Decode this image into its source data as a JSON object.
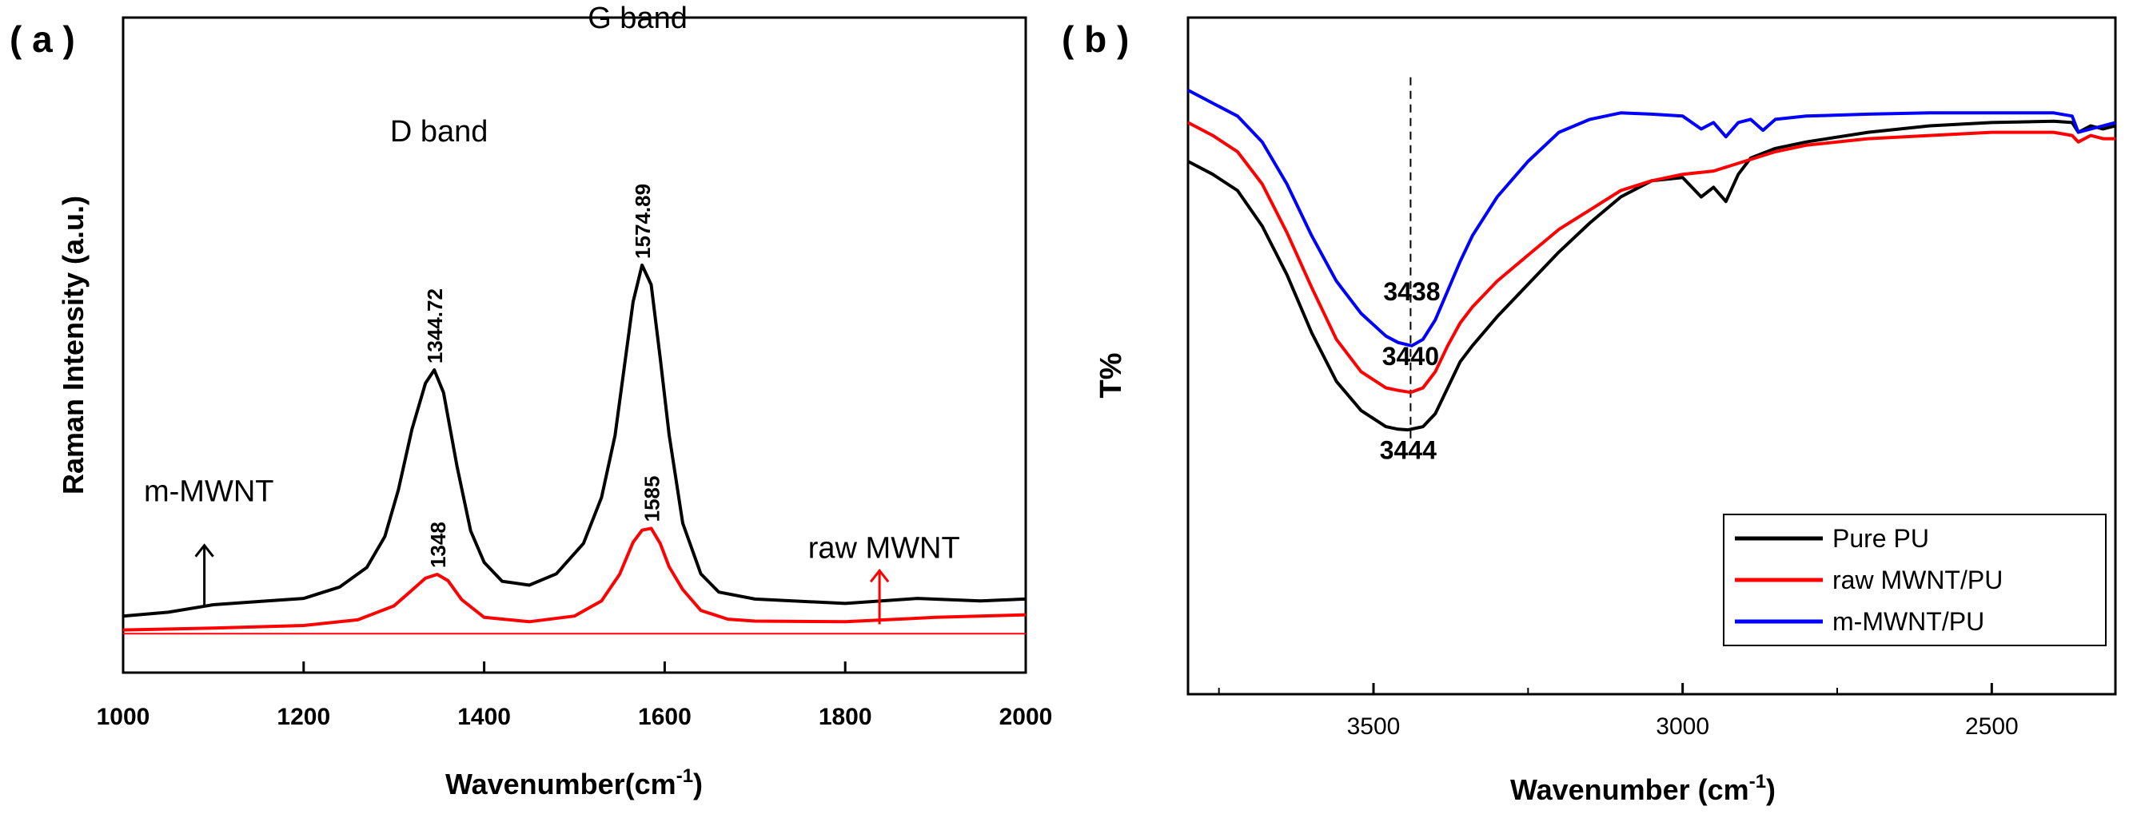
{
  "chart_data": [
    {
      "panel": "( a )",
      "type": "line",
      "title": "",
      "xlabel": "Wavenumber(cm",
      "xlabel_sup": "-1",
      "xlabel_close": ")",
      "ylabel": "Raman Intensity (a.u.)",
      "xlim": [
        1000,
        2000
      ],
      "ylim": [
        0,
        100
      ],
      "x_ticks": [
        1000,
        1200,
        1400,
        1600,
        1800,
        2000
      ],
      "x_tick_labels": [
        "1000",
        "1200",
        "1400",
        "1600",
        "1800",
        "2000"
      ],
      "y_ticks_shown": false,
      "series": [
        {
          "name": "m-MWNT",
          "color": "#000000",
          "x": [
            1000,
            1050,
            1100,
            1150,
            1200,
            1240,
            1270,
            1290,
            1305,
            1320,
            1335,
            1344.72,
            1355,
            1370,
            1385,
            1400,
            1420,
            1450,
            1480,
            1510,
            1530,
            1545,
            1555,
            1565,
            1574.89,
            1585,
            1595,
            1605,
            1620,
            1640,
            1660,
            1700,
            1800,
            1880,
            1950,
            2000
          ],
          "values": [
            5.8,
            6.4,
            7.6,
            8.1,
            8.6,
            10.4,
            13.5,
            18.4,
            25.8,
            35.4,
            42.7,
            44.8,
            41.2,
            29.5,
            19.3,
            14.3,
            11.3,
            10.7,
            12.5,
            17.3,
            24.6,
            34.4,
            45.0,
            55.6,
            61.4,
            58.3,
            46.7,
            34.5,
            20.5,
            12.5,
            9.6,
            8.5,
            7.8,
            8.6,
            8.2,
            8.5
          ]
        },
        {
          "name": "raw MWNT",
          "color": "#ff0000",
          "x": [
            1000,
            1100,
            1200,
            1260,
            1300,
            1320,
            1335,
            1348,
            1360,
            1375,
            1400,
            1450,
            1500,
            1530,
            1550,
            1565,
            1575,
            1585,
            1595,
            1605,
            1620,
            1640,
            1670,
            1700,
            1800,
            1900,
            2000
          ],
          "values": [
            3.6,
            3.9,
            4.3,
            5.2,
            7.4,
            9.9,
            11.8,
            12.4,
            11.4,
            8.4,
            5.6,
            4.9,
            5.8,
            8.2,
            12.4,
            17.5,
            19.4,
            19.7,
            17.3,
            13.6,
            10.0,
            6.7,
            5.3,
            5.0,
            4.9,
            5.6,
            6.0
          ]
        },
        {
          "name": "baseline",
          "color": "#ff0000",
          "x": [
            1000,
            2000
          ],
          "values": [
            3.0,
            3.0
          ]
        }
      ],
      "peak_labels": [
        {
          "text": "1344.72",
          "x": 1344.72,
          "y": 44.8
        },
        {
          "text": "1574.89",
          "x": 1574.89,
          "y": 61.4
        },
        {
          "text": "1348",
          "x": 1348,
          "y": 12.4
        },
        {
          "text": "1585",
          "x": 1585,
          "y": 19.7
        }
      ],
      "annotations": [
        {
          "text": "G band",
          "x": 1570,
          "y": 99
        },
        {
          "text": "D band",
          "x": 1350,
          "y": 81
        },
        {
          "text": "m-MWNT",
          "x": 1095,
          "y": 24
        },
        {
          "text": "raw MWNT",
          "x": 1843,
          "y": 15
        }
      ],
      "arrows": [
        {
          "name": "m-MWNT",
          "x": 1090,
          "from": 7.6,
          "to": 17,
          "color": "#000000"
        },
        {
          "name": "raw MWNT",
          "x": 1838,
          "from": 4.5,
          "to": 13,
          "color": "#ff0000"
        }
      ]
    },
    {
      "panel": "( b )",
      "type": "line",
      "title": "",
      "xlabel": "Wavenumber (cm",
      "xlabel_sup": "-1",
      "xlabel_close": ")",
      "ylabel": "T%",
      "xlim": [
        3800,
        2300
      ],
      "ylim": [
        0,
        100
      ],
      "x_ticks": [
        3500,
        3000,
        2500
      ],
      "x_tick_labels": [
        "3500",
        "3000",
        "2500"
      ],
      "y_ticks_shown": false,
      "series": [
        {
          "name": "Pure PU",
          "color": "#000000",
          "x": [
            3800,
            3760,
            3720,
            3680,
            3640,
            3600,
            3560,
            3520,
            3480,
            3460,
            3444,
            3420,
            3400,
            3380,
            3360,
            3340,
            3300,
            3250,
            3200,
            3150,
            3100,
            3050,
            3000,
            2970,
            2950,
            2930,
            2910,
            2890,
            2850,
            2800,
            2700,
            2600,
            2500,
            2400,
            2370,
            2360,
            2340,
            2320,
            2300
          ],
          "values": [
            80.0,
            78.0,
            75.5,
            70.0,
            62.5,
            53.5,
            46.0,
            41.5,
            39.0,
            38.6,
            38.5,
            39.0,
            41.0,
            45.0,
            49.0,
            51.5,
            56.0,
            61.0,
            66.0,
            70.5,
            74.5,
            77.0,
            77.5,
            74.5,
            76.0,
            73.8,
            78.0,
            80.5,
            82.0,
            83.0,
            84.5,
            85.5,
            86.0,
            86.2,
            86.0,
            84.5,
            85.5,
            85.0,
            85.5
          ]
        },
        {
          "name": "raw MWNT/PU",
          "color": "#ff0000",
          "x": [
            3800,
            3760,
            3720,
            3680,
            3640,
            3600,
            3560,
            3520,
            3480,
            3460,
            3440,
            3420,
            3400,
            3380,
            3360,
            3340,
            3300,
            3250,
            3200,
            3150,
            3100,
            3050,
            3000,
            2950,
            2900,
            2850,
            2800,
            2700,
            2600,
            2500,
            2400,
            2370,
            2360,
            2340,
            2320,
            2300
          ],
          "values": [
            86.0,
            84.0,
            81.5,
            76.5,
            69.0,
            60.5,
            52.5,
            47.5,
            45.0,
            44.6,
            44.3,
            45.0,
            47.5,
            51.5,
            55.0,
            57.5,
            61.5,
            65.5,
            69.5,
            72.5,
            75.5,
            77.0,
            78.0,
            78.5,
            80.0,
            81.5,
            82.5,
            83.5,
            84.0,
            84.5,
            84.5,
            84.0,
            83.0,
            84.0,
            83.5,
            83.5
          ]
        },
        {
          "name": "m-MWNT/PU",
          "color": "#0000ff",
          "x": [
            3800,
            3760,
            3720,
            3680,
            3640,
            3600,
            3560,
            3520,
            3480,
            3460,
            3438,
            3420,
            3400,
            3380,
            3360,
            3340,
            3300,
            3250,
            3200,
            3150,
            3100,
            3050,
            3000,
            2970,
            2950,
            2930,
            2910,
            2890,
            2870,
            2850,
            2800,
            2700,
            2600,
            2500,
            2400,
            2370,
            2360,
            2340,
            2320,
            2300
          ],
          "values": [
            91.0,
            89.0,
            87.0,
            83.0,
            76.5,
            68.5,
            61.5,
            56.5,
            53.0,
            52.0,
            51.5,
            52.5,
            55.5,
            60.0,
            64.5,
            68.5,
            74.5,
            80.0,
            84.5,
            86.5,
            87.5,
            87.3,
            87.0,
            85.0,
            86.0,
            83.8,
            86.0,
            86.5,
            84.8,
            86.5,
            87.0,
            87.3,
            87.5,
            87.5,
            87.5,
            87.0,
            84.5,
            85.0,
            85.5,
            86.0
          ]
        }
      ],
      "peak_labels": [
        {
          "text": "3438",
          "x": 3438,
          "y": 58.5
        },
        {
          "text": "3440",
          "x": 3440,
          "y": 48.5
        },
        {
          "text": "3444",
          "x": 3444,
          "y": 34.0
        }
      ],
      "reference_line": {
        "x": 3440,
        "from": 37,
        "to": 93,
        "style": "dashed"
      },
      "legend": {
        "position": "bottom-right",
        "entries": [
          {
            "label": "Pure PU",
            "color": "#000000"
          },
          {
            "label": "raw MWNT/PU",
            "color": "#ff0000"
          },
          {
            "label": "m-MWNT/PU",
            "color": "#0000ff"
          }
        ]
      }
    }
  ]
}
